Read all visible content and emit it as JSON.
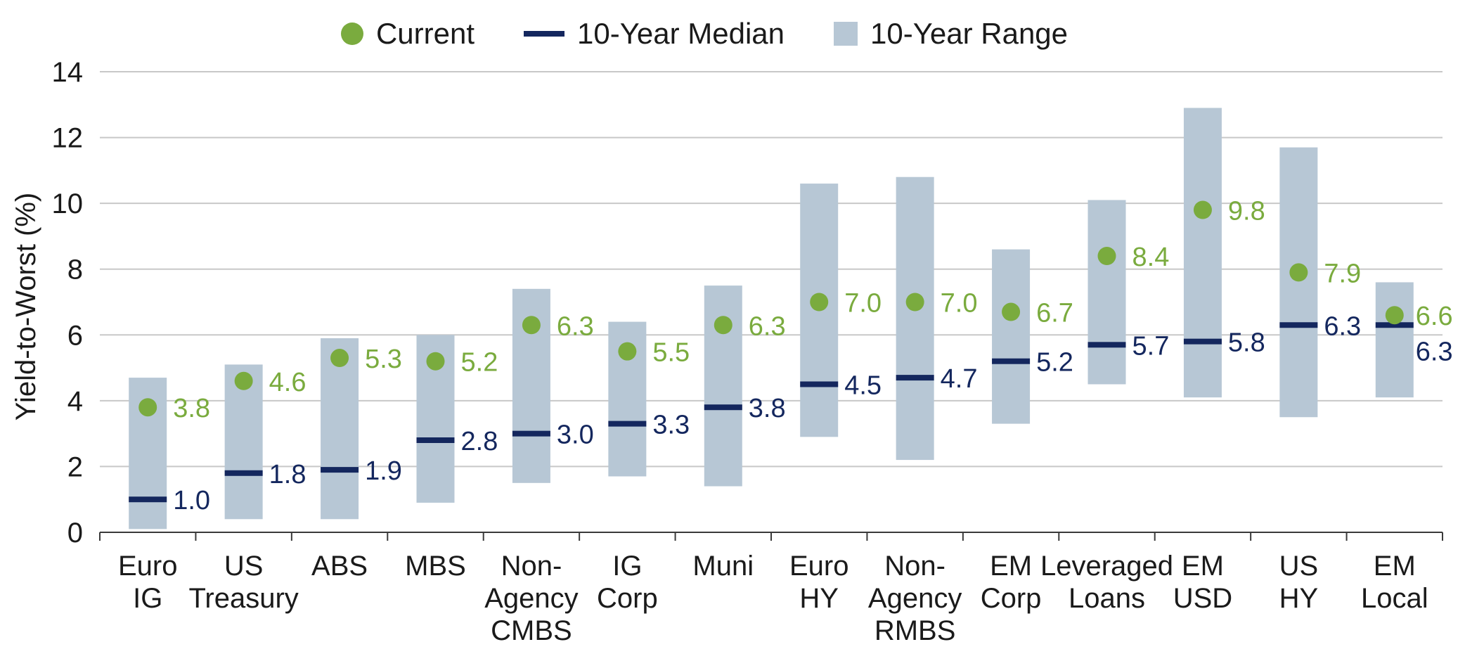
{
  "chart_data": {
    "type": "range-dot",
    "title": "",
    "ylabel": "Yield-to-Worst (%)",
    "xlabel": "",
    "ylim": [
      0,
      14
    ],
    "yticks": [
      0,
      2,
      4,
      6,
      8,
      10,
      12,
      14
    ],
    "grid": true,
    "legend": {
      "placement": "top-center",
      "current": "Current",
      "median": "10-Year Median",
      "range": "10-Year Range"
    },
    "colors": {
      "current": "#7aab3e",
      "median": "#14275e",
      "range": "#b7c7d5",
      "grid": "#c8c8c8",
      "axis": "#3a3a3a"
    },
    "categories": [
      {
        "label": [
          "Euro",
          "IG"
        ],
        "range_low": 0.1,
        "range_high": 4.7,
        "median": 1.0,
        "current": 3.8
      },
      {
        "label": [
          "US",
          "Treasury"
        ],
        "range_low": 0.4,
        "range_high": 5.1,
        "median": 1.8,
        "current": 4.6
      },
      {
        "label": [
          "ABS"
        ],
        "range_low": 0.4,
        "range_high": 5.9,
        "median": 1.9,
        "current": 5.3
      },
      {
        "label": [
          "MBS"
        ],
        "range_low": 0.9,
        "range_high": 6.0,
        "median": 2.8,
        "current": 5.2
      },
      {
        "label": [
          "Non-",
          "Agency",
          "CMBS"
        ],
        "range_low": 1.5,
        "range_high": 7.4,
        "median": 3.0,
        "current": 6.3
      },
      {
        "label": [
          "IG",
          "Corp"
        ],
        "range_low": 1.7,
        "range_high": 6.4,
        "median": 3.3,
        "current": 5.5
      },
      {
        "label": [
          "Muni"
        ],
        "range_low": 1.4,
        "range_high": 7.5,
        "median": 3.8,
        "current": 6.3
      },
      {
        "label": [
          "Euro",
          "HY"
        ],
        "range_low": 2.9,
        "range_high": 10.6,
        "median": 4.5,
        "current": 7.0
      },
      {
        "label": [
          "Non-",
          "Agency",
          "RMBS"
        ],
        "range_low": 2.2,
        "range_high": 10.8,
        "median": 4.7,
        "current": 7.0
      },
      {
        "label": [
          "EM",
          "Corp"
        ],
        "range_low": 3.3,
        "range_high": 8.6,
        "median": 5.2,
        "current": 6.7
      },
      {
        "label": [
          "Leveraged",
          "Loans"
        ],
        "range_low": 4.5,
        "range_high": 10.1,
        "median": 5.7,
        "current": 8.4
      },
      {
        "label": [
          "EM",
          "USD"
        ],
        "range_low": 4.1,
        "range_high": 12.9,
        "median": 5.8,
        "current": 9.8
      },
      {
        "label": [
          "US",
          "HY"
        ],
        "range_low": 3.5,
        "range_high": 11.7,
        "median": 6.3,
        "current": 7.9
      },
      {
        "label": [
          "EM",
          "Local"
        ],
        "range_low": 4.1,
        "range_high": 7.6,
        "median": 6.3,
        "current": 6.6
      }
    ]
  }
}
